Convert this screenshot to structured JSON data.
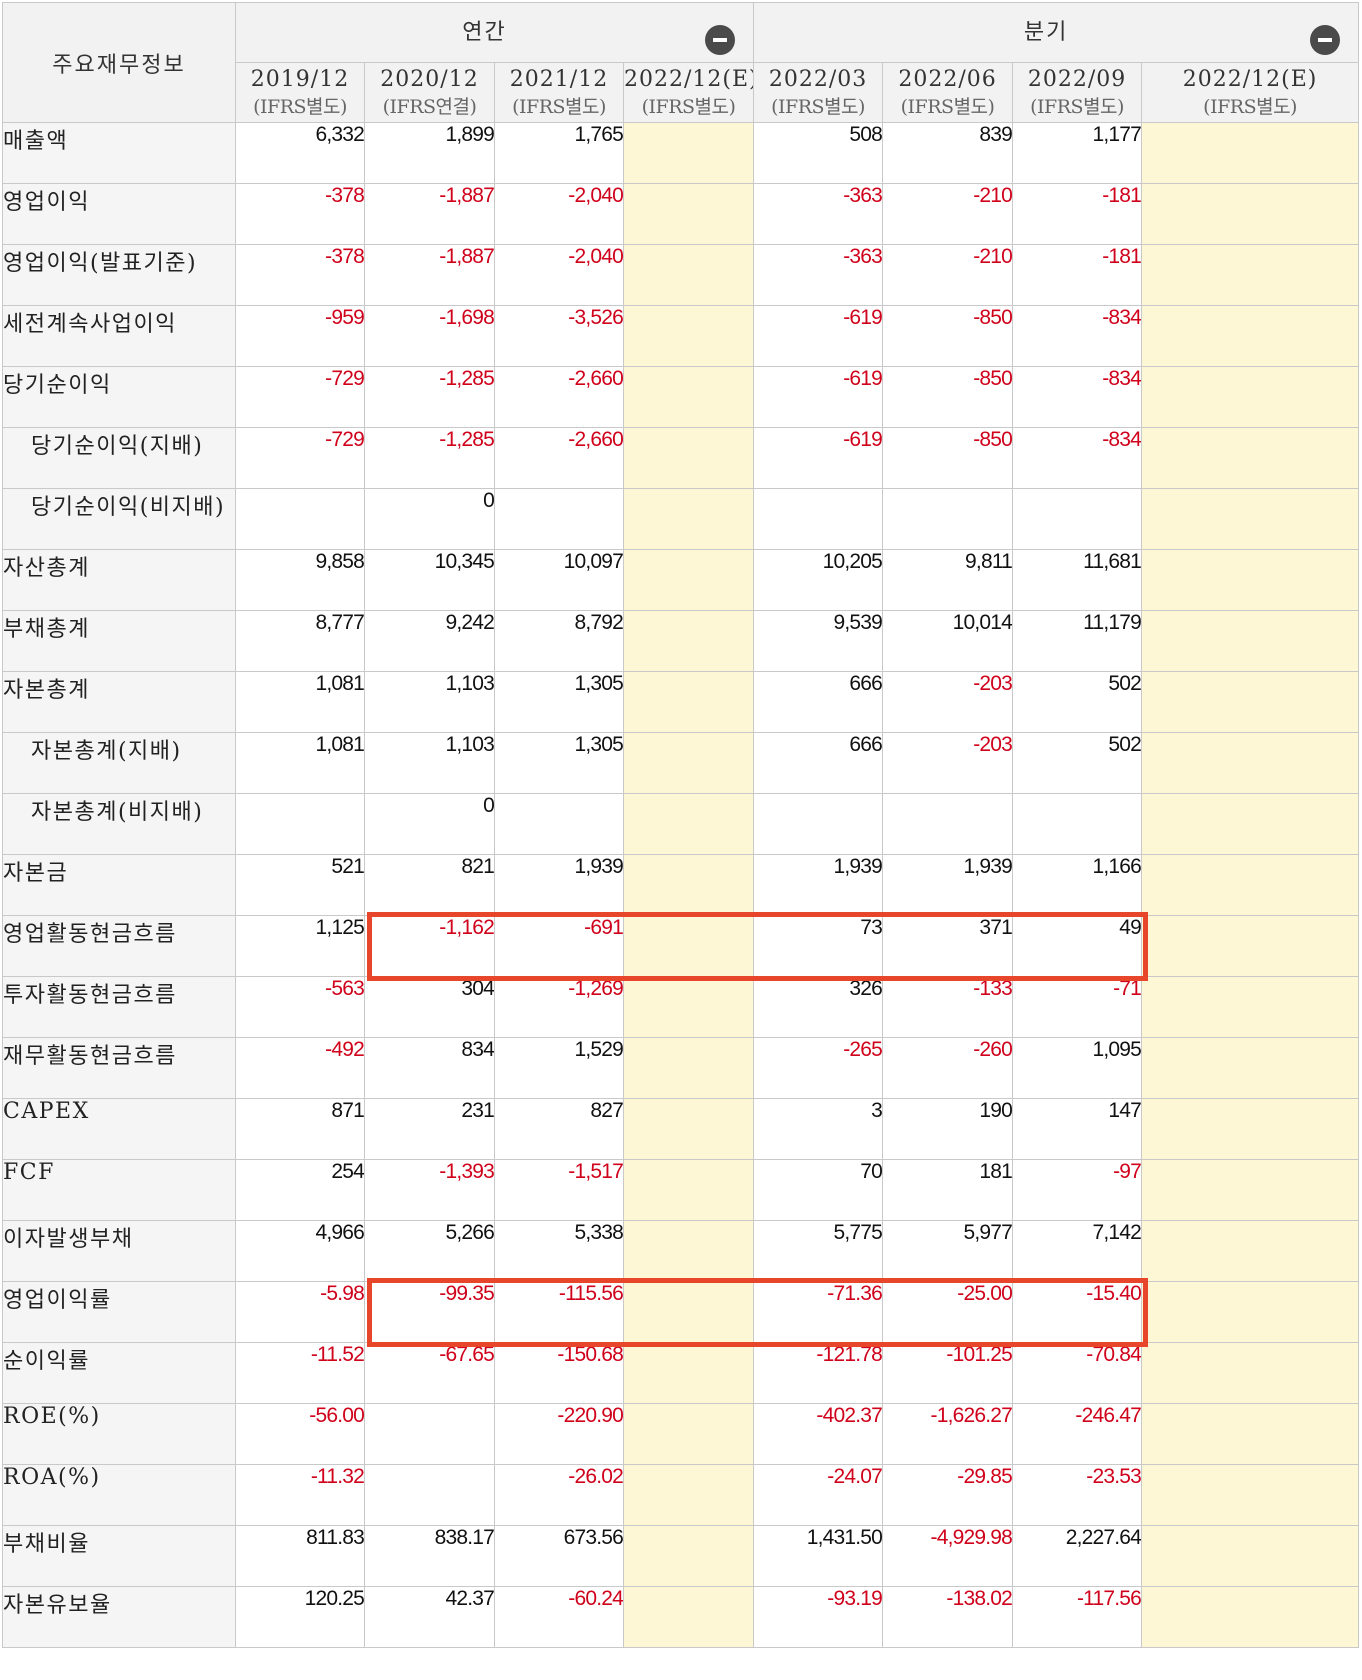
{
  "header": {
    "corner_label": "주요재무정보",
    "groups": [
      {
        "label": "연간"
      },
      {
        "label": "분기"
      }
    ],
    "periods": [
      {
        "date": "2019/12",
        "basis": "(IFRS별도)"
      },
      {
        "date": "2020/12",
        "basis": "(IFRS연결)"
      },
      {
        "date": "2021/12",
        "basis": "(IFRS별도)"
      },
      {
        "date": "2022/12(E)",
        "basis": "(IFRS별도)"
      },
      {
        "date": "2022/03",
        "basis": "(IFRS별도)"
      },
      {
        "date": "2022/06",
        "basis": "(IFRS별도)"
      },
      {
        "date": "2022/09",
        "basis": "(IFRS별도)"
      },
      {
        "date": "2022/12(E)",
        "basis": "(IFRS별도)"
      }
    ]
  },
  "rows": [
    {
      "label": "매출액",
      "values": [
        "6,332",
        "1,899",
        "1,765",
        "",
        "508",
        "839",
        "1,177",
        ""
      ]
    },
    {
      "label": "영업이익",
      "values": [
        "-378",
        "-1,887",
        "-2,040",
        "",
        "-363",
        "-210",
        "-181",
        ""
      ]
    },
    {
      "label": "영업이익(발표기준)",
      "values": [
        "-378",
        "-1,887",
        "-2,040",
        "",
        "-363",
        "-210",
        "-181",
        ""
      ]
    },
    {
      "label": "세전계속사업이익",
      "values": [
        "-959",
        "-1,698",
        "-3,526",
        "",
        "-619",
        "-850",
        "-834",
        ""
      ]
    },
    {
      "label": "당기순이익",
      "values": [
        "-729",
        "-1,285",
        "-2,660",
        "",
        "-619",
        "-850",
        "-834",
        ""
      ]
    },
    {
      "label": "당기순이익(지배)",
      "values": [
        "-729",
        "-1,285",
        "-2,660",
        "",
        "-619",
        "-850",
        "-834",
        ""
      ]
    },
    {
      "label": "당기순이익(비지배)",
      "values": [
        "",
        "0",
        "",
        "",
        "",
        "",
        "",
        ""
      ]
    },
    {
      "label": "자산총계",
      "values": [
        "9,858",
        "10,345",
        "10,097",
        "",
        "10,205",
        "9,811",
        "11,681",
        ""
      ]
    },
    {
      "label": "부채총계",
      "values": [
        "8,777",
        "9,242",
        "8,792",
        "",
        "9,539",
        "10,014",
        "11,179",
        ""
      ]
    },
    {
      "label": "자본총계",
      "values": [
        "1,081",
        "1,103",
        "1,305",
        "",
        "666",
        "-203",
        "502",
        ""
      ]
    },
    {
      "label": "자본총계(지배)",
      "values": [
        "1,081",
        "1,103",
        "1,305",
        "",
        "666",
        "-203",
        "502",
        ""
      ]
    },
    {
      "label": "자본총계(비지배)",
      "values": [
        "",
        "0",
        "",
        "",
        "",
        "",
        "",
        ""
      ]
    },
    {
      "label": "자본금",
      "values": [
        "521",
        "821",
        "1,939",
        "",
        "1,939",
        "1,939",
        "1,166",
        ""
      ]
    },
    {
      "label": "영업활동현금흐름",
      "values": [
        "1,125",
        "-1,162",
        "-691",
        "",
        "73",
        "371",
        "49",
        ""
      ]
    },
    {
      "label": "투자활동현금흐름",
      "values": [
        "-563",
        "304",
        "-1,269",
        "",
        "326",
        "-133",
        "-71",
        ""
      ]
    },
    {
      "label": "재무활동현금흐름",
      "values": [
        "-492",
        "834",
        "1,529",
        "",
        "-265",
        "-260",
        "1,095",
        ""
      ]
    },
    {
      "label": "CAPEX",
      "values": [
        "871",
        "231",
        "827",
        "",
        "3",
        "190",
        "147",
        ""
      ]
    },
    {
      "label": "FCF",
      "values": [
        "254",
        "-1,393",
        "-1,517",
        "",
        "70",
        "181",
        "-97",
        ""
      ]
    },
    {
      "label": "이자발생부채",
      "values": [
        "4,966",
        "5,266",
        "5,338",
        "",
        "5,775",
        "5,977",
        "7,142",
        ""
      ]
    },
    {
      "label": "영업이익률",
      "values": [
        "-5.98",
        "-99.35",
        "-115.56",
        "",
        "-71.36",
        "-25.00",
        "-15.40",
        ""
      ]
    },
    {
      "label": "순이익률",
      "values": [
        "-11.52",
        "-67.65",
        "-150.68",
        "",
        "-121.78",
        "-101.25",
        "-70.84",
        ""
      ]
    },
    {
      "label": "ROE(%)",
      "values": [
        "-56.00",
        "",
        "-220.90",
        "",
        "-402.37",
        "-1,626.27",
        "-246.47",
        ""
      ]
    },
    {
      "label": "ROA(%)",
      "values": [
        "-11.32",
        "",
        "-26.02",
        "",
        "-24.07",
        "-29.85",
        "-23.53",
        ""
      ]
    },
    {
      "label": "부채비율",
      "values": [
        "811.83",
        "838.17",
        "673.56",
        "",
        "1,431.50",
        "-4,929.98",
        "2,227.64",
        ""
      ]
    },
    {
      "label": "자본유보율",
      "values": [
        "120.25",
        "42.37",
        "-60.24",
        "",
        "-93.19",
        "-138.02",
        "-117.56",
        ""
      ]
    }
  ],
  "colors": {
    "negative": "#d0021b",
    "estimate_bg": "#fdf7d6",
    "highlight": "#e8462a"
  },
  "highlights": [
    {
      "row_label": "영업활동현금흐름",
      "from_period": "2020/12",
      "to_period": "2022/09"
    },
    {
      "row_label": "영업이익률",
      "from_period": "2020/12",
      "to_period": "2022/09"
    }
  ]
}
